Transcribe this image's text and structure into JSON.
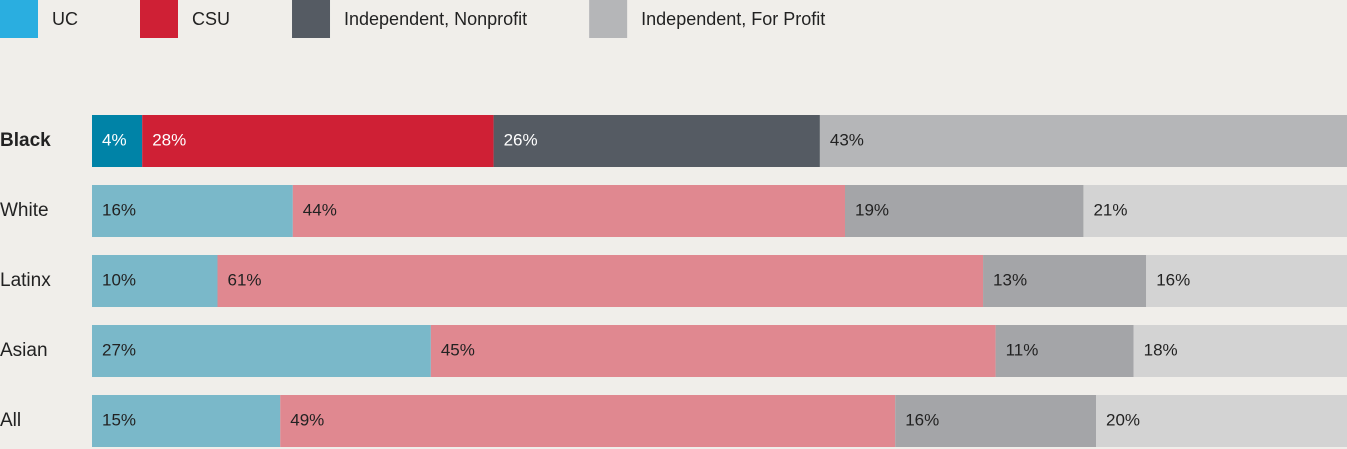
{
  "chart_data": {
    "type": "stacked-bar-horizontal",
    "categories": [
      "Black",
      "White",
      "Latinx",
      "Asian",
      "All"
    ],
    "highlight": "Black",
    "xlim": [
      0,
      100
    ],
    "series": [
      {
        "name": "UC",
        "color": "#2aaee0",
        "highlight_color": "#0083a7",
        "muted_color": "#7ab8c9",
        "values": [
          4,
          16,
          10,
          27,
          15
        ],
        "value_labels": [
          "4%",
          "16%",
          "10%",
          "27%",
          "15%"
        ]
      },
      {
        "name": "CSU",
        "color": "#cf2035",
        "highlight_color": "#cf2035",
        "muted_color": "#e08890",
        "values": [
          28,
          44,
          61,
          45,
          49
        ],
        "value_labels": [
          "28%",
          "44%",
          "61%",
          "45%",
          "49%"
        ]
      },
      {
        "name": "Independent, Nonprofit",
        "color": "#555b63",
        "highlight_color": "#555b63",
        "muted_color": "#a4a5a8",
        "values": [
          26,
          19,
          13,
          11,
          16
        ],
        "value_labels": [
          "26%",
          "19%",
          "13%",
          "11%",
          "16%"
        ]
      },
      {
        "name": "Independent, For Profit",
        "color": "#b5b6b8",
        "highlight_color": "#b5b6b8",
        "muted_color": "#d3d3d3",
        "values": [
          43,
          21,
          16,
          18,
          20
        ],
        "value_labels": [
          "43%",
          "21%",
          "16%",
          "18%",
          "20%"
        ]
      }
    ]
  }
}
